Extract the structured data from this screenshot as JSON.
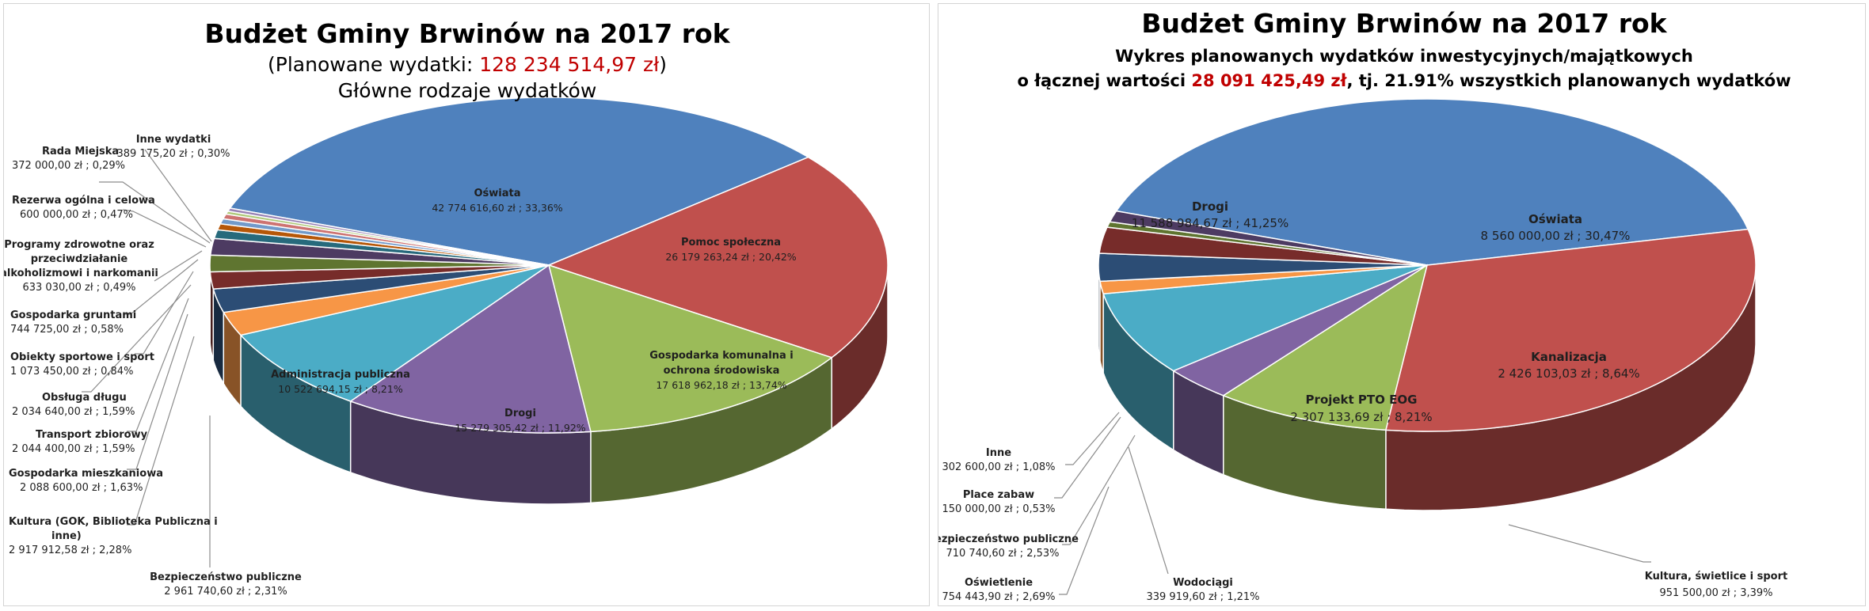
{
  "chart_data": [
    {
      "type": "pie",
      "title": "Budżet Gminy Brwinów na 2017 rok",
      "subtitle_prefix": "(Planowane wydatki: ",
      "subtitle_value": "128 234 514,97 zł",
      "subtitle_suffix": ")",
      "subtitle2": "Główne rodzaje wydatków",
      "slices": [
        {
          "name": "Oświata",
          "value": 42774616.6,
          "percent": 33.36,
          "label": "42 774 616,60 zł ; 33,36%",
          "color": "#4f81bd"
        },
        {
          "name": "Pomoc społeczna",
          "value": 26179263.24,
          "percent": 20.42,
          "label": "26 179 263,24 zł ; 20,42%",
          "color": "#c0504d"
        },
        {
          "name": "Gospodarka komunalna i ochrona środowiska",
          "value": 17618962.18,
          "percent": 13.74,
          "label": "17 618 962,18 zł ; 13,74%",
          "color": "#9bbb59"
        },
        {
          "name": "Drogi",
          "value": 15279305.42,
          "percent": 11.92,
          "label": "15 279 305,42 zł ; 11,92%",
          "color": "#8064a2"
        },
        {
          "name": "Administracja publiczna",
          "value": 10522694.15,
          "percent": 8.21,
          "label": "10 522 694,15 zł ; 8,21%",
          "color": "#4bacc6"
        },
        {
          "name": "Bezpieczeństwo publiczne",
          "value": 2961740.6,
          "percent": 2.31,
          "label": "2 961 740,60 zł ; 2,31%",
          "color": "#f79646"
        },
        {
          "name": "Kultura (GOK, Biblioteka Publiczna i inne)",
          "value": 2917912.58,
          "percent": 2.28,
          "label": "2 917 912,58 zł ; 2,28%",
          "color": "#2c4d75"
        },
        {
          "name": "Gospodarka mieszkaniowa",
          "value": 2088600.0,
          "percent": 1.63,
          "label": "2 088 600,00 zł ; 1,63%",
          "color": "#772c2a"
        },
        {
          "name": "Transport zbiorowy",
          "value": 2044400.0,
          "percent": 1.59,
          "label": "2 044 400,00 zł ; 1,59%",
          "color": "#5f7530"
        },
        {
          "name": "Obsługa długu",
          "value": 2034640.0,
          "percent": 1.59,
          "label": "2 034 640,00 zł ; 1,59%",
          "color": "#4d3b62"
        },
        {
          "name": "Obiekty sportowe i sport",
          "value": 1073450.0,
          "percent": 0.84,
          "label": "1 073 450,00 zł ; 0,84%",
          "color": "#276a7c"
        },
        {
          "name": "Gospodarka gruntami",
          "value": 744725.0,
          "percent": 0.58,
          "label": "744 725,00 zł ; 0,58%",
          "color": "#b65708"
        },
        {
          "name": "Programy zdrowotne oraz przeciwdziałanie alkoholizmowi i narkomanii",
          "value": 633030.0,
          "percent": 0.49,
          "label": "633 030,00 zł ; 0,49%",
          "color": "#729aca"
        },
        {
          "name": "Rezerwa ogólna i celowa",
          "value": 600000.0,
          "percent": 0.47,
          "label": "600 000,00 zł ; 0,47%",
          "color": "#cd7371"
        },
        {
          "name": "Rada Miejska",
          "value": 372000.0,
          "percent": 0.29,
          "label": "372 000,00 zł ; 0,29%",
          "color": "#afc97a"
        },
        {
          "name": "Inne wydatki",
          "value": 389175.2,
          "percent": 0.3,
          "label": "389 175,20 zł ; 0,30%",
          "color": "#9983b5"
        }
      ],
      "labels": {
        "oswiata": {
          "l1": "Oświata",
          "v": "42 774 616,60 zł ; 33,36%"
        },
        "pomoc": {
          "l1": "Pomoc społeczna",
          "v": "26 179 263,24 zł ; 20,42%"
        },
        "gosp_kom": {
          "l1": "Gospodarka komunalna i",
          "l2": "ochrona środowiska",
          "v": "17 618 962,18 zł ; 13,74%"
        },
        "drogi": {
          "l1": "Drogi",
          "v": "15 279 305,42 zł ; 11,92%"
        },
        "admin": {
          "l1": "Administracja publiczna",
          "v": "10 522 694,15 zł ; 8,21%"
        },
        "bezp": {
          "l1": "Bezpieczeństwo publiczne",
          "v": "2 961 740,60 zł ; 2,31%"
        },
        "kultura": {
          "l1": "Kultura (GOK, Biblioteka Publiczna i",
          "l2": "inne)",
          "v": "2 917 912,58 zł ; 2,28%"
        },
        "gosp_mieszk": {
          "l1": "Gospodarka mieszkaniowa",
          "v": "2 088 600,00 zł ; 1,63%"
        },
        "transport": {
          "l1": "Transport zbiorowy",
          "v": "2 044 400,00 zł ; 1,59%"
        },
        "dlug": {
          "l1": "Obsługa długu",
          "v": "2 034 640,00 zł ; 1,59%"
        },
        "sport": {
          "l1": "Obiekty sportowe i sport",
          "v": "1 073 450,00 zł ; 0,84%"
        },
        "grunty": {
          "l1": "Gospodarka gruntami",
          "v": "744 725,00 zł ; 0,58%"
        },
        "programy": {
          "l1": "Programy zdrowotne oraz",
          "l2": "przeciwdziałanie",
          "l3": "alkoholizmowi i narkomanii",
          "v": "633 030,00 zł ; 0,49%"
        },
        "rezerwa": {
          "l1": "Rezerwa ogólna i celowa",
          "v": "600 000,00 zł ; 0,47%"
        },
        "rada": {
          "l1": "Rada Miejska",
          "v": "372 000,00 zł ; 0,29%"
        },
        "inne": {
          "l1": "Inne wydatki",
          "v": "389 175,20 zł ; 0,30%"
        }
      }
    },
    {
      "type": "pie",
      "title": "Budżet Gminy Brwinów na 2017 rok",
      "subtitle_line1": "Wykres planowanych wydatków inwestycyjnych/majątkowych",
      "subtitle_prefix": "o łącznej wartości ",
      "subtitle_value": "28 091 425,49 zł",
      "subtitle_suffix": ", tj. 21.91% wszystkich planowanych wydatków",
      "slices": [
        {
          "name": "Drogi",
          "value": 11588984.67,
          "percent": 41.25,
          "label": "11 588 984,67 zł ; 41,25%",
          "color": "#4f81bd"
        },
        {
          "name": "Oświata",
          "value": 8560000.0,
          "percent": 30.47,
          "label": "8 560 000,00 zł ; 30,47%",
          "color": "#c0504d"
        },
        {
          "name": "Kanalizacja",
          "value": 2426103.03,
          "percent": 8.64,
          "label": "2 426 103,03 zł ; 8,64%",
          "color": "#9bbb59"
        },
        {
          "name": "Kultura, świetlice i sport",
          "value": 951500.0,
          "percent": 3.39,
          "label": "951 500,00 zł ; 3,39%",
          "color": "#8064a2"
        },
        {
          "name": "Projekt PTO EOG",
          "value": 2307133.69,
          "percent": 8.21,
          "label": "2 307 133,69 zł ; 8,21%",
          "color": "#4bacc6"
        },
        {
          "name": "Wodociągi",
          "value": 339919.6,
          "percent": 1.21,
          "label": "339 919,60 zł ; 1,21%",
          "color": "#f79646"
        },
        {
          "name": "Oświetlenie",
          "value": 754443.9,
          "percent": 2.69,
          "label": "754 443,90 zł ; 2,69%",
          "color": "#2c4d75"
        },
        {
          "name": "Bezpieczeństwo publiczne",
          "value": 710740.6,
          "percent": 2.53,
          "label": "710 740,60 zł ; 2,53%",
          "color": "#772c2a"
        },
        {
          "name": "Place zabaw",
          "value": 150000.0,
          "percent": 0.53,
          "label": "150 000,00 zł ; 0,53%",
          "color": "#5f7530"
        },
        {
          "name": "Inne",
          "value": 302600.0,
          "percent": 1.08,
          "label": "302 600,00 zł ; 1,08%",
          "color": "#4d3b62"
        }
      ],
      "labels": {
        "drogi": {
          "l1": "Drogi",
          "v": "11 588 984,67 zł ; 41,25%"
        },
        "oswiata": {
          "l1": "Oświata",
          "v": "8 560 000,00 zł ; 30,47%"
        },
        "kanal": {
          "l1": "Kanalizacja",
          "v": "2 426 103,03 zł ; 8,64%"
        },
        "kultura": {
          "l1": "Kultura, świetlice i sport",
          "v": "951 500,00 zł ; 3,39%"
        },
        "projekt": {
          "l1": "Projekt PTO EOG",
          "v": "2 307 133,69 zł ; 8,21%"
        },
        "wodociagi": {
          "l1": "Wodociągi",
          "v": "339 919,60 zł ; 1,21%"
        },
        "oswietlenie": {
          "l1": "Oświetlenie",
          "v": "754 443,90 zł ; 2,69%"
        },
        "bezp": {
          "l1": "Bezpieczeństwo publiczne",
          "v": "710 740,60 zł ; 2,53%"
        },
        "place": {
          "l1": "Place zabaw",
          "v": "150 000,00 zł ; 0,53%"
        },
        "inne": {
          "l1": "Inne",
          "v": "302 600,00 zł ; 1,08%"
        }
      }
    }
  ]
}
